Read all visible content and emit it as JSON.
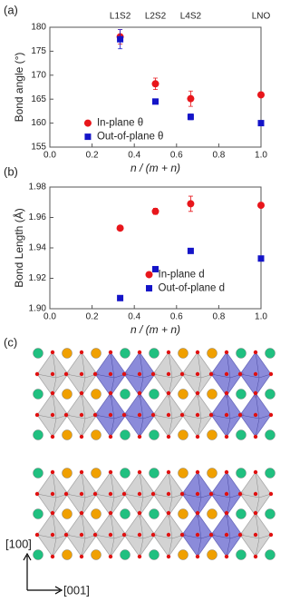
{
  "panel_labels": [
    "(a)",
    "(b)",
    "(c)"
  ],
  "crystal": {
    "axis_labels": [
      "[100]",
      "[001]"
    ]
  },
  "chart_data": [
    {
      "type": "scatter",
      "ylabel": "Bond angle (°)",
      "xlabel": "n / (m + n)",
      "top_labels": {
        "x": [
          0.333,
          0.5,
          0.667,
          1.0
        ],
        "labels": [
          "L1S2",
          "L2S2",
          "L4S2",
          "LNO"
        ]
      },
      "xlim": [
        0,
        1
      ],
      "xticks": [
        {
          "value": 0,
          "label": "0.0"
        },
        0.2,
        0.4,
        0.6,
        0.8,
        {
          "value": 1,
          "label": "1.0"
        }
      ],
      "ylim": [
        155,
        180
      ],
      "yticks": [
        155,
        160,
        165,
        170,
        175,
        180
      ],
      "legend": "lower center",
      "series": [
        {
          "name": "In-plane θ",
          "color": "#e8161b",
          "marker": "circle",
          "x": [
            0.333,
            0.5,
            0.667,
            1.0
          ],
          "values": [
            178.0,
            168.2,
            165.1,
            165.9
          ],
          "errors": [
            1.5,
            1.2,
            1.6,
            0
          ]
        },
        {
          "name": "Out-of-plane θ",
          "color": "#1414c8",
          "marker": "square",
          "x": [
            0.333,
            0.5,
            0.667,
            1.0
          ],
          "values": [
            177.5,
            164.5,
            161.3,
            160.0
          ],
          "errors": [
            2.0,
            0.5,
            0.6,
            0.3
          ]
        }
      ]
    },
    {
      "type": "scatter",
      "ylabel": "Bond Length (Å)",
      "xlabel": "n / (m + n)",
      "xlim": [
        0,
        1
      ],
      "xticks": [
        {
          "value": 0,
          "label": "0.0"
        },
        0.2,
        0.4,
        0.6,
        0.8,
        {
          "value": 1,
          "label": "1.0"
        }
      ],
      "ylim": [
        1.9,
        1.98
      ],
      "yticks": [
        {
          "value": 1.9,
          "label": "1.90"
        },
        1.92,
        1.94,
        1.96,
        1.98
      ],
      "legend": "lower right",
      "series": [
        {
          "name": "In-plane d",
          "color": "#e8161b",
          "marker": "circle",
          "x": [
            0.333,
            0.5,
            0.667,
            1.0
          ],
          "values": [
            1.953,
            1.964,
            1.969,
            1.968
          ],
          "errors": [
            0.001,
            0.002,
            0.005,
            0
          ]
        },
        {
          "name": "Out-of-plane d",
          "color": "#1414c8",
          "marker": "square",
          "x": [
            0.333,
            0.5,
            0.667,
            1.0
          ],
          "values": [
            1.907,
            1.926,
            1.938,
            1.933
          ],
          "errors": [
            0.001,
            0.001,
            0.001,
            0.001
          ]
        }
      ]
    }
  ]
}
